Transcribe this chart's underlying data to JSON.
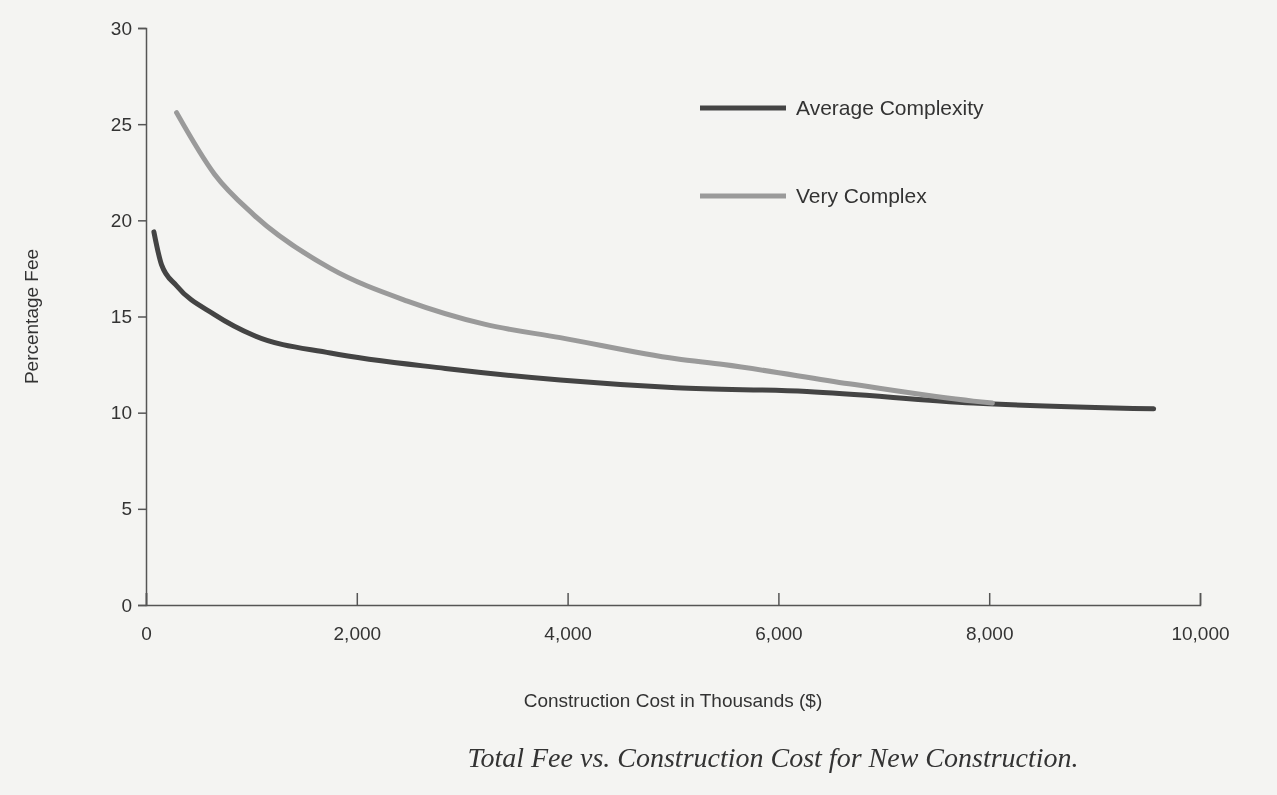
{
  "chart_data": {
    "type": "line",
    "title": "Total Fee vs. Construction Cost for New Construction.",
    "xlabel": "Construction Cost in Thousands ($)",
    "ylabel": "Percentage Fee",
    "xlim": [
      0,
      10000
    ],
    "ylim": [
      0,
      30
    ],
    "xticks": [
      {
        "value": 0,
        "label": "0"
      },
      {
        "value": 2000,
        "label": "2,000"
      },
      {
        "value": 4000,
        "label": "4,000"
      },
      {
        "value": 6000,
        "label": "6,000"
      },
      {
        "value": 8000,
        "label": "8,000"
      },
      {
        "value": 10000,
        "label": "10,000"
      }
    ],
    "yticks": [
      0,
      5,
      10,
      15,
      20,
      25,
      30
    ],
    "legend": "top right",
    "grid": false,
    "marker": "none",
    "line_style": "solid",
    "series": [
      {
        "name": "Average Complexity",
        "color": "#444444",
        "x": [
          75,
          147,
          290,
          650,
          1030,
          1750,
          2840,
          3930,
          5030,
          6270,
          7850,
          9560
        ],
        "values": [
          19.4,
          17.7,
          16.6,
          15.1,
          14.0,
          13.1,
          12.3,
          11.7,
          11.3,
          11.1,
          10.5,
          10.2
        ]
      },
      {
        "name": "Very Complex",
        "color": "#9a9a9a",
        "x": [
          290,
          650,
          1020,
          1750,
          2480,
          3210,
          3930,
          5030,
          5480,
          6670,
          7850,
          8030
        ],
        "values": [
          25.6,
          22.4,
          20.3,
          17.5,
          15.8,
          14.6,
          13.9,
          12.8,
          12.5,
          11.5,
          10.6,
          10.5
        ]
      }
    ]
  }
}
